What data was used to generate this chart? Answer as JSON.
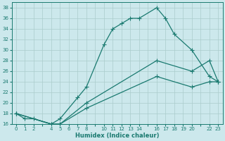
{
  "xlabel": "Humidex (Indice chaleur)",
  "bg_color": "#cce8ec",
  "grid_color": "#aacccc",
  "line_color": "#1a7a70",
  "ylim": [
    16,
    39
  ],
  "yticks": [
    16,
    18,
    20,
    22,
    24,
    26,
    28,
    30,
    32,
    34,
    36,
    38
  ],
  "xlabels": [
    "0",
    "1",
    "2",
    "",
    "4",
    "5",
    "6",
    "7",
    "8",
    "",
    "10",
    "11",
    "12",
    "13",
    "14",
    "",
    "16",
    "17",
    "18",
    "19",
    "20",
    "",
    "22",
    "23"
  ],
  "xtick_pos": [
    0,
    1,
    2,
    3,
    4,
    5,
    6,
    7,
    8,
    9,
    10,
    11,
    12,
    13,
    14,
    15,
    16,
    17,
    18,
    19,
    20,
    21,
    22,
    23
  ],
  "xlim": [
    -0.5,
    23.5
  ],
  "line1_x": [
    0,
    1,
    2,
    4,
    5,
    7,
    8,
    10,
    11,
    12,
    13,
    14,
    16,
    17,
    18,
    20,
    22,
    23
  ],
  "line1_y": [
    18,
    17,
    17,
    16,
    17,
    21,
    23,
    31,
    34,
    35,
    36,
    36,
    38,
    36,
    33,
    30,
    25,
    24
  ],
  "line2_x": [
    0,
    4,
    5,
    8,
    16,
    20,
    22,
    23
  ],
  "line2_y": [
    18,
    16,
    16,
    20,
    28,
    26,
    28,
    24
  ],
  "line3_x": [
    0,
    4,
    5,
    8,
    16,
    20,
    22,
    23
  ],
  "line3_y": [
    18,
    16,
    16,
    19,
    25,
    23,
    24,
    24
  ],
  "marker": "+",
  "markersize": 4,
  "linewidth": 0.9
}
